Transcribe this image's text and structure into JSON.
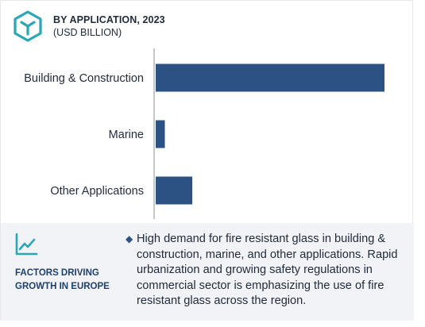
{
  "header": {
    "title": "BY APPLICATION, 2023",
    "subtitle": "(USD BILLION)"
  },
  "chart_data": {
    "type": "bar",
    "orientation": "horizontal",
    "categories": [
      "Building & Construction",
      "Marine",
      "Other Applications"
    ],
    "values": [
      100,
      4,
      16
    ],
    "value_note_unit": "relative",
    "xlabel": "",
    "ylabel": "",
    "grid": false,
    "bar_color": "#2c5283"
  },
  "footer": {
    "heading": "FACTORS DRIVING GROWTH IN EUROPE",
    "bullet": "High demand for fire resistant glass in building & construction, marine, and other applications. Rapid urbanization and growing safety regulations in commercial sector is emphasizing the use of  fire resistant glass across the region."
  },
  "colors": {
    "accent": "#2c5283",
    "icon_teal": "#2aa6b8",
    "footer_bg": "#f1f3f6"
  },
  "icons": {
    "logo": "hexagon-cube-icon",
    "trend": "trending-up-chart-icon"
  }
}
